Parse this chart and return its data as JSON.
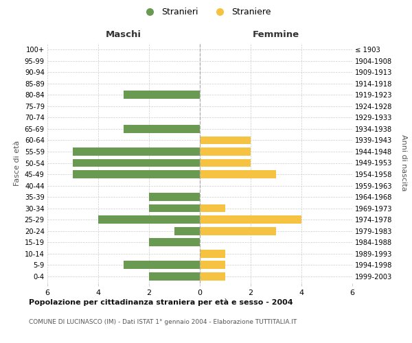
{
  "age_groups": [
    "0-4",
    "5-9",
    "10-14",
    "15-19",
    "20-24",
    "25-29",
    "30-34",
    "35-39",
    "40-44",
    "45-49",
    "50-54",
    "55-59",
    "60-64",
    "65-69",
    "70-74",
    "75-79",
    "80-84",
    "85-89",
    "90-94",
    "95-99",
    "100+"
  ],
  "birth_years": [
    "1999-2003",
    "1994-1998",
    "1989-1993",
    "1984-1988",
    "1979-1983",
    "1974-1978",
    "1969-1973",
    "1964-1968",
    "1959-1963",
    "1954-1958",
    "1949-1953",
    "1944-1948",
    "1939-1943",
    "1934-1938",
    "1929-1933",
    "1924-1928",
    "1919-1923",
    "1914-1918",
    "1909-1913",
    "1904-1908",
    "≤ 1903"
  ],
  "maschi": [
    2,
    3,
    0,
    2,
    1,
    4,
    2,
    2,
    0,
    5,
    5,
    5,
    0,
    3,
    0,
    0,
    3,
    0,
    0,
    0,
    0
  ],
  "femmine": [
    1,
    1,
    1,
    0,
    3,
    4,
    1,
    0,
    0,
    3,
    2,
    2,
    2,
    0,
    0,
    0,
    0,
    0,
    0,
    0,
    0
  ],
  "maschi_color": "#6a9a52",
  "femmine_color": "#f5c242",
  "title_main": "Popolazione per cittadinanza straniera per età e sesso - 2004",
  "title_sub": "COMUNE DI LUCINASCO (IM) - Dati ISTAT 1° gennaio 2004 - Elaborazione TUTTITALIA.IT",
  "legend_maschi": "Stranieri",
  "legend_femmine": "Straniere",
  "label_maschi": "Maschi",
  "label_femmine": "Femmine",
  "ylabel_left": "Fasce di età",
  "ylabel_right": "Anni di nascita",
  "xlim": 6,
  "background_color": "#ffffff",
  "grid_color": "#cccccc",
  "spine_color": "#cccccc"
}
